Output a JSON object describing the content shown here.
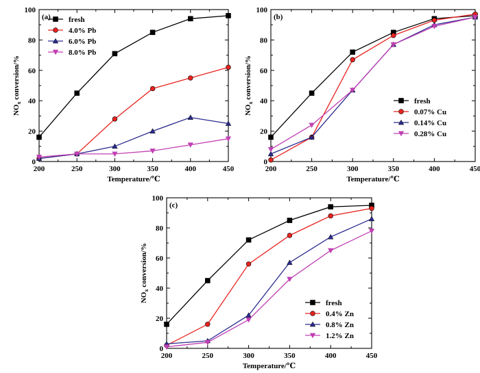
{
  "chart_data": [
    {
      "type": "line",
      "panel_label": "(a)",
      "xlabel": "Temperature/℃",
      "ylabel": {
        "prefix": "NO",
        "subscript": "x",
        "suffix": " conversion/%"
      },
      "xlim": [
        200,
        450
      ],
      "ylim": [
        0,
        100
      ],
      "xticks": [
        200,
        250,
        300,
        350,
        400,
        450
      ],
      "yticks": [
        0,
        20,
        40,
        60,
        80,
        100
      ],
      "legend_position": "top-left",
      "x": [
        200,
        250,
        300,
        350,
        400,
        450
      ],
      "series": [
        {
          "name": "fresh",
          "color": "#000000",
          "marker": "square",
          "values": [
            16,
            45,
            71,
            85,
            94,
            96
          ]
        },
        {
          "name": "4.0% Pb",
          "color": "#e8231f",
          "marker": "circle",
          "values": [
            2,
            5,
            28,
            48,
            55,
            62
          ]
        },
        {
          "name": "6.0% Pb",
          "color": "#2b2b8f",
          "marker": "triangle-up",
          "values": [
            2,
            5,
            10,
            20,
            29,
            25
          ]
        },
        {
          "name": "8.0% Pb",
          "color": "#c040b4",
          "marker": "triangle-down",
          "values": [
            3,
            5,
            5,
            7,
            11,
            15
          ]
        }
      ]
    },
    {
      "type": "line",
      "panel_label": "(b)",
      "xlabel": "Temperature/℃",
      "ylabel": {
        "prefix": "NO",
        "subscript": "x",
        "suffix": " conversion/%"
      },
      "xlim": [
        200,
        450
      ],
      "ylim": [
        0,
        100
      ],
      "xticks": [
        200,
        250,
        300,
        350,
        400,
        450
      ],
      "yticks": [
        0,
        20,
        40,
        60,
        80,
        100
      ],
      "legend_position": "bottom-right",
      "x": [
        200,
        250,
        300,
        350,
        400,
        450
      ],
      "series": [
        {
          "name": "fresh",
          "color": "#000000",
          "marker": "square",
          "values": [
            16,
            45,
            72,
            85,
            94,
            96
          ]
        },
        {
          "name": "0.07% Cu",
          "color": "#e8231f",
          "marker": "circle",
          "values": [
            1,
            16,
            67,
            83,
            93,
            97
          ]
        },
        {
          "name": "0.14% Cu",
          "color": "#2b2b8f",
          "marker": "triangle-up",
          "values": [
            5,
            16,
            47,
            77,
            90,
            95
          ]
        },
        {
          "name": "0.28% Cu",
          "color": "#c040b4",
          "marker": "triangle-down",
          "values": [
            8,
            24,
            47,
            77,
            89,
            95
          ]
        }
      ]
    },
    {
      "type": "line",
      "panel_label": "(c)",
      "xlabel": "Temperature/℃",
      "ylabel": {
        "prefix": "NO",
        "subscript": "x",
        "suffix": " conversion/%"
      },
      "xlim": [
        200,
        450
      ],
      "ylim": [
        0,
        100
      ],
      "xticks": [
        200,
        250,
        300,
        350,
        400,
        450
      ],
      "yticks": [
        0,
        20,
        40,
        60,
        80,
        100
      ],
      "legend_position": "bottom-right",
      "x": [
        200,
        250,
        300,
        350,
        400,
        450
      ],
      "series": [
        {
          "name": "fresh",
          "color": "#000000",
          "marker": "square",
          "values": [
            16,
            45,
            72,
            85,
            94,
            95
          ]
        },
        {
          "name": "0.4% Zn",
          "color": "#e8231f",
          "marker": "circle",
          "values": [
            2,
            16,
            56,
            75,
            88,
            93
          ]
        },
        {
          "name": "0.8% Zn",
          "color": "#2b2b8f",
          "marker": "triangle-up",
          "values": [
            3,
            5,
            22,
            57,
            74,
            86
          ]
        },
        {
          "name": "1.2% Zn",
          "color": "#c040b4",
          "marker": "triangle-down",
          "values": [
            1,
            4,
            19,
            46,
            65,
            78
          ]
        }
      ]
    }
  ]
}
